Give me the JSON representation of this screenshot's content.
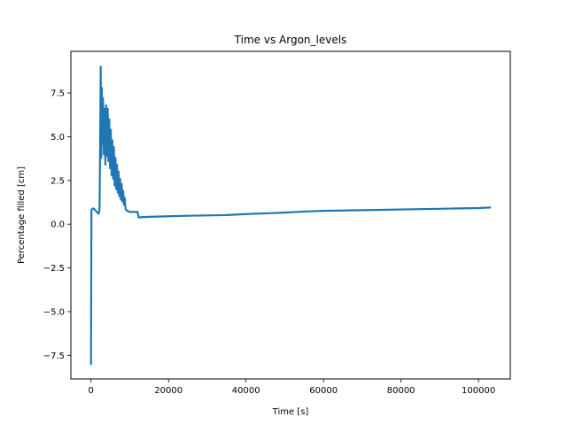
{
  "chart_data": {
    "type": "line",
    "title": "Time vs Argon_levels",
    "xlabel": "Time [s]",
    "ylabel": "Percentage filled [cm]",
    "xlim": [
      -5200,
      108200
    ],
    "ylim": [
      -8.85,
      9.88
    ],
    "xticks": [
      0,
      20000,
      40000,
      60000,
      80000,
      100000
    ],
    "yticks": [
      -7.5,
      -5.0,
      -2.5,
      0.0,
      2.5,
      5.0,
      7.5
    ],
    "xtick_labels": [
      "0",
      "20000",
      "40000",
      "60000",
      "80000",
      "100000"
    ],
    "ytick_labels": [
      "−7.5",
      "−5.0",
      "−2.5",
      "0.0",
      "2.5",
      "5.0",
      "7.5"
    ],
    "grid": false,
    "series": [
      {
        "color": "#1f77b4",
        "x": [
          0,
          100,
          250,
          500,
          900,
          1300,
          1700,
          2000,
          2200,
          2350,
          2500,
          2650,
          2800,
          2950,
          3100,
          3300,
          3500,
          3700,
          3900,
          4100,
          4300,
          4500,
          4700,
          4900,
          5100,
          5300,
          5500,
          5700,
          5900,
          6100,
          6300,
          6500,
          6700,
          6900,
          7100,
          7300,
          7500,
          7700,
          7900,
          8100,
          8300,
          8500,
          8700,
          8900,
          9100,
          9500,
          10000,
          11000,
          12000,
          12300,
          13000,
          15000,
          20000,
          25000,
          30000,
          35000,
          40000,
          45000,
          50000,
          55000,
          60000,
          65000,
          70000,
          75000,
          80000,
          85000,
          90000,
          95000,
          100000,
          103000
        ],
        "y": [
          -8.0,
          0.8,
          0.85,
          0.9,
          0.85,
          0.75,
          0.65,
          0.6,
          0.9,
          4.5,
          9.0,
          3.8,
          7.8,
          4.6,
          7.2,
          4.0,
          6.6,
          3.4,
          6.8,
          3.9,
          6.6,
          3.6,
          6.0,
          3.2,
          5.4,
          2.8,
          4.8,
          2.6,
          4.4,
          2.2,
          3.8,
          2.0,
          3.4,
          1.8,
          3.0,
          1.6,
          2.6,
          1.4,
          2.3,
          1.3,
          1.9,
          1.1,
          1.5,
          0.9,
          0.8,
          0.75,
          0.7,
          0.7,
          0.7,
          0.38,
          0.4,
          0.42,
          0.45,
          0.48,
          0.5,
          0.52,
          0.58,
          0.62,
          0.66,
          0.72,
          0.76,
          0.78,
          0.8,
          0.82,
          0.84,
          0.86,
          0.88,
          0.9,
          0.92,
          0.95
        ]
      }
    ]
  }
}
